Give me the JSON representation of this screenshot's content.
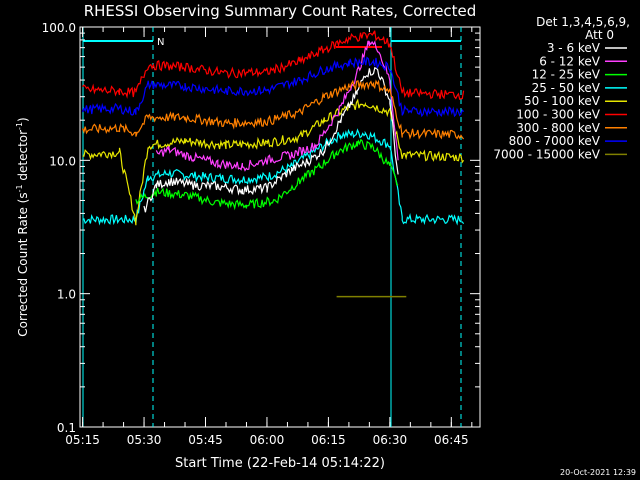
{
  "chart_data": {
    "type": "line",
    "title": "RHESSI Observing Summary Count Rates, Corrected",
    "xlabel": "Start Time (22-Feb-14 05:14:22)",
    "ylabel_main": "Corrected Count Rate (s",
    "ylabel_sup1": "-1",
    "ylabel_mid": " detector",
    "ylabel_sup2": "-1",
    "ylabel_end": ")",
    "y_scale": "log",
    "ylim": [
      0.1,
      100
    ],
    "xlim": [
      "05:14:22",
      "06:52:00"
    ],
    "x_ticks": [
      "05:15",
      "05:30",
      "05:45",
      "06:00",
      "06:15",
      "06:30",
      "06:45"
    ],
    "y_ticks": [
      "0.1",
      "1.0",
      "10.0",
      "100.0"
    ],
    "legend_header_1": "Det 1,3,4,5,6,9,",
    "legend_header_2": "Att 0",
    "legend_position": "right",
    "footer_date": "20-Oct-2021 12:39",
    "flag_label": "N",
    "series": [
      {
        "name": "3 - 6 keV",
        "color": "#ffffff",
        "x": [
          "05:30",
          "05:33",
          "05:36",
          "05:42",
          "05:48",
          "05:54",
          "06:00",
          "06:06",
          "06:10",
          "06:14",
          "06:18",
          "06:22",
          "06:24",
          "06:27",
          "06:30",
          "06:32"
        ],
        "values": [
          4.2,
          6.5,
          7.0,
          6.5,
          6.4,
          6.0,
          6.2,
          8.5,
          9.8,
          12.0,
          20.0,
          32.0,
          45.0,
          48.0,
          28.0,
          7.5
        ]
      },
      {
        "name": "6 - 12 keV",
        "color": "#ff40ff",
        "x": [
          "05:33",
          "05:36",
          "05:42",
          "05:48",
          "05:54",
          "06:00",
          "06:06",
          "06:12",
          "06:18",
          "06:22",
          "06:25",
          "06:27",
          "06:30",
          "06:32"
        ],
        "values": [
          11.0,
          12.0,
          10.5,
          9.5,
          9.0,
          10.0,
          11.0,
          13.0,
          25.0,
          45.0,
          78.0,
          70.0,
          40.0,
          10.0
        ]
      },
      {
        "name": "12 - 25 keV",
        "color": "#00ff00",
        "x": [
          "05:28",
          "05:33",
          "05:40",
          "05:48",
          "05:55",
          "06:02",
          "06:08",
          "06:13",
          "06:17",
          "06:22",
          "06:26",
          "06:30",
          "06:32"
        ],
        "values": [
          5.0,
          5.8,
          5.5,
          4.8,
          4.6,
          5.0,
          7.0,
          9.0,
          11.5,
          13.5,
          12.5,
          9.0,
          6.5
        ]
      },
      {
        "name": "25 - 50 keV",
        "color": "#00ffff",
        "x": [
          "05:15",
          "05:28",
          "05:31",
          "05:36",
          "05:45",
          "05:54",
          "06:00",
          "06:06",
          "06:12",
          "06:18",
          "06:24",
          "06:30",
          "06:33",
          "06:48"
        ],
        "values": [
          3.6,
          3.6,
          7.5,
          8.0,
          7.5,
          7.2,
          7.5,
          9.0,
          12.0,
          15.5,
          16.0,
          13.0,
          3.6,
          3.6
        ]
      },
      {
        "name": "50 - 100 keV",
        "color": "#e6e600",
        "x": [
          "05:15",
          "05:24",
          "05:28",
          "05:31",
          "05:40",
          "05:50",
          "06:00",
          "06:08",
          "06:14",
          "06:20",
          "06:24",
          "06:30",
          "06:33",
          "06:48"
        ],
        "values": [
          11.0,
          11.5,
          3.5,
          13.0,
          14.0,
          13.0,
          13.5,
          15.0,
          20.0,
          25.0,
          27.0,
          23.0,
          11.0,
          10.5
        ]
      },
      {
        "name": "100 - 300 keV",
        "color": "#ff0000",
        "x": [
          "05:15",
          "05:24",
          "05:28",
          "05:31",
          "05:40",
          "05:50",
          "06:00",
          "06:08",
          "06:14",
          "06:20",
          "06:26",
          "06:30",
          "06:33",
          "06:48"
        ],
        "values": [
          34.0,
          33.0,
          32.0,
          52.0,
          50.0,
          45.0,
          46.0,
          55.0,
          68.0,
          82.0,
          88.0,
          75.0,
          32.0,
          31.0
        ]
      },
      {
        "name": "300 - 800 keV",
        "color": "#ff8000",
        "x": [
          "05:15",
          "05:24",
          "05:28",
          "05:31",
          "05:40",
          "05:50",
          "06:00",
          "06:08",
          "06:14",
          "06:20",
          "06:26",
          "06:30",
          "06:33",
          "06:48"
        ],
        "values": [
          17.0,
          17.5,
          16.0,
          21.0,
          21.0,
          19.0,
          19.5,
          23.0,
          30.0,
          36.0,
          38.0,
          33.0,
          16.0,
          15.5
        ]
      },
      {
        "name": "800 - 7000 keV",
        "color": "#0000ff",
        "x": [
          "05:15",
          "05:24",
          "05:28",
          "05:31",
          "05:40",
          "05:50",
          "06:00",
          "06:08",
          "06:14",
          "06:20",
          "06:26",
          "06:30",
          "06:33",
          "06:48"
        ],
        "values": [
          24.0,
          24.5,
          23.0,
          37.0,
          36.0,
          33.0,
          33.5,
          40.0,
          48.0,
          54.0,
          55.0,
          50.0,
          23.5,
          23.0
        ]
      },
      {
        "name": "7000 - 15000 keV",
        "color": "#808000",
        "x": [
          "06:17",
          "06:32",
          "06:34"
        ],
        "values": [
          0.95,
          0.95,
          0.95
        ]
      }
    ]
  }
}
